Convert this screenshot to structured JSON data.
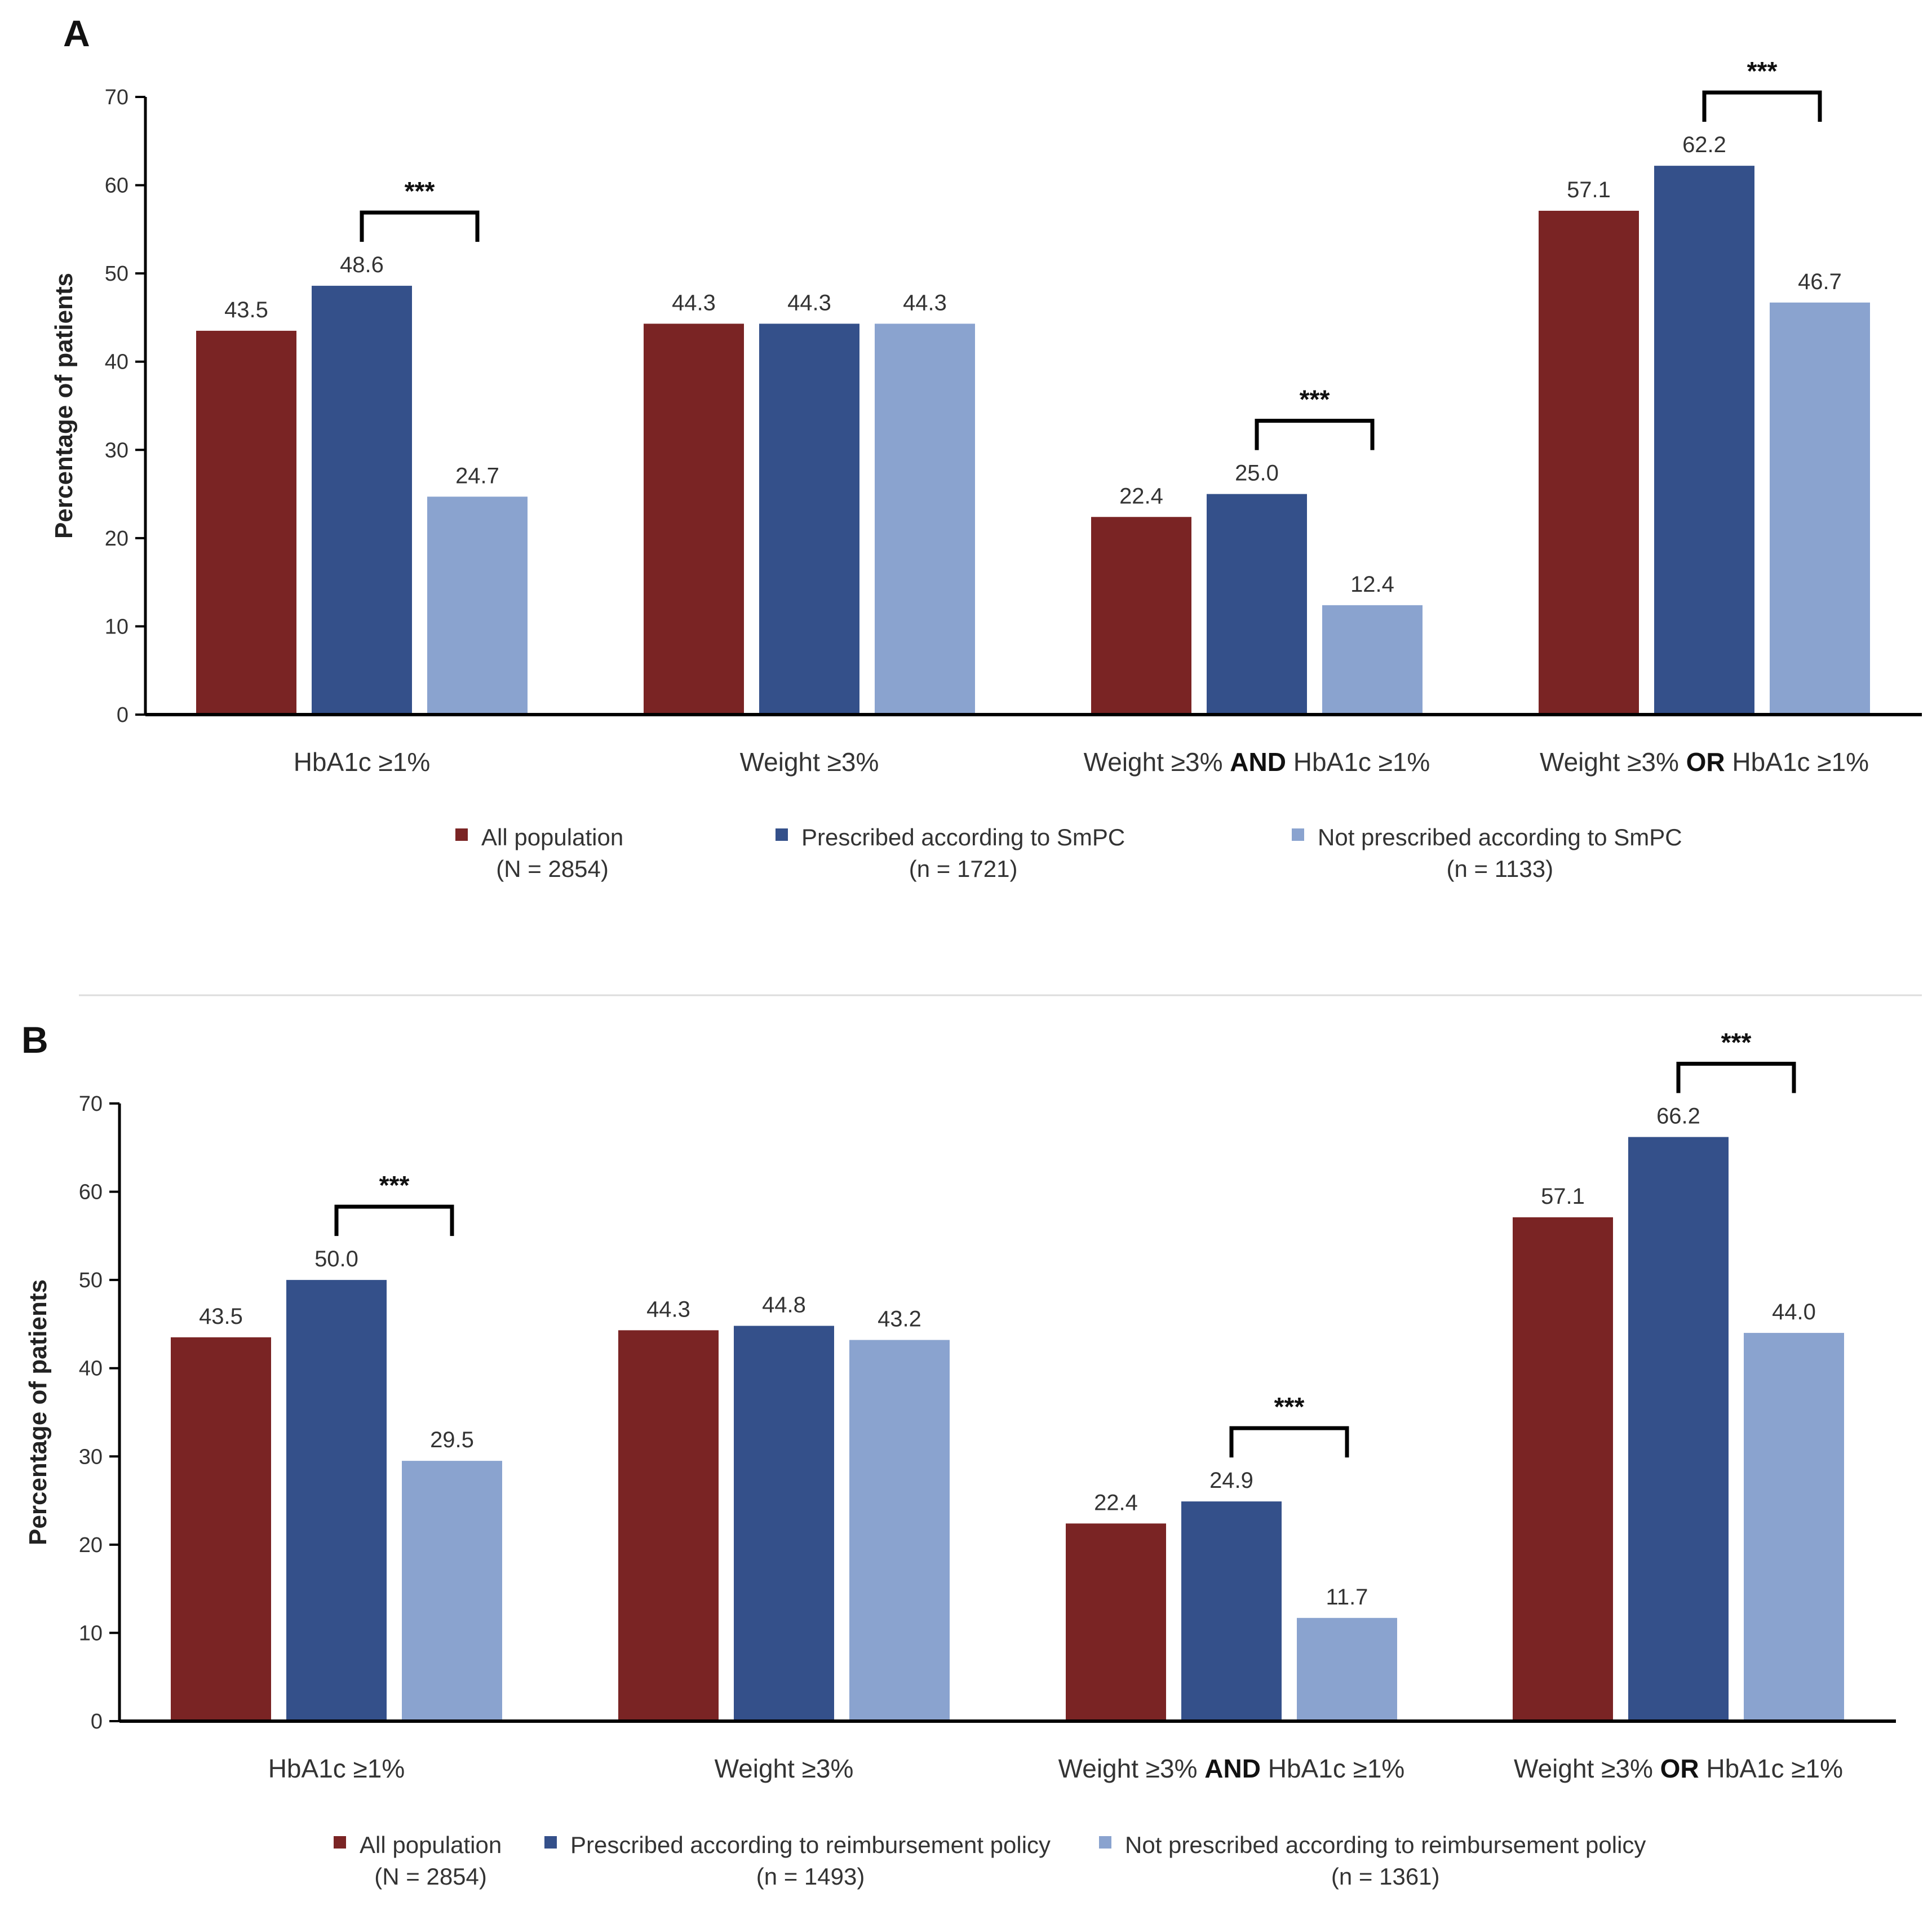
{
  "chart_data": [
    {
      "type": "bar",
      "panel": "A",
      "ylabel": "Percentage of patients",
      "ylim": [
        0,
        70
      ],
      "yticks": [
        "0",
        "10",
        "20",
        "30",
        "40",
        "50",
        "60",
        "70"
      ],
      "categories": [
        {
          "parts": [
            {
              "t": "HbA1c ≥1%",
              "b": false
            }
          ]
        },
        {
          "parts": [
            {
              "t": "Weight ≥3%",
              "b": false
            }
          ]
        },
        {
          "parts": [
            {
              "t": "Weight ≥3% ",
              "b": false
            },
            {
              "t": "AND",
              "b": true
            },
            {
              "t": " HbA1c ≥1%",
              "b": false
            }
          ]
        },
        {
          "parts": [
            {
              "t": "Weight ≥3% ",
              "b": false
            },
            {
              "t": "OR",
              "b": true
            },
            {
              "t": " HbA1c ≥1%",
              "b": false
            }
          ]
        }
      ],
      "series": [
        {
          "name": "All population",
          "n": "(N = 2854)",
          "values": [
            43.5,
            44.3,
            22.4,
            57.1
          ],
          "labels": [
            "43.5",
            "44.3",
            "22.4",
            "57.1"
          ],
          "color": "#7a2424"
        },
        {
          "name": "Prescribed according to SmPC",
          "n": "(n = 1721)",
          "values": [
            48.6,
            44.3,
            25.0,
            62.2
          ],
          "labels": [
            "48.6",
            "44.3",
            "25.0",
            "62.2"
          ],
          "color": "#34508a"
        },
        {
          "name": "Not prescribed according to SmPC",
          "n": "(n = 1133)",
          "values": [
            24.7,
            44.3,
            12.4,
            46.7
          ],
          "labels": [
            "24.7",
            "44.3",
            "12.4",
            "46.7"
          ],
          "color": "#8aa3cf"
        }
      ],
      "significance": [
        {
          "category": 0,
          "label": "***"
        },
        {
          "category": 2,
          "label": "***"
        },
        {
          "category": 3,
          "label": "***"
        }
      ]
    },
    {
      "type": "bar",
      "panel": "B",
      "ylabel": "Percentage of patients",
      "ylim": [
        0,
        70
      ],
      "yticks": [
        "0",
        "10",
        "20",
        "30",
        "40",
        "50",
        "60",
        "70"
      ],
      "categories": [
        {
          "parts": [
            {
              "t": "HbA1c ≥1%",
              "b": false
            }
          ]
        },
        {
          "parts": [
            {
              "t": "Weight ≥3%",
              "b": false
            }
          ]
        },
        {
          "parts": [
            {
              "t": "Weight ≥3% ",
              "b": false
            },
            {
              "t": "AND",
              "b": true
            },
            {
              "t": " HbA1c ≥1%",
              "b": false
            }
          ]
        },
        {
          "parts": [
            {
              "t": "Weight ≥3% ",
              "b": false
            },
            {
              "t": "OR",
              "b": true
            },
            {
              "t": " HbA1c ≥1%",
              "b": false
            }
          ]
        }
      ],
      "series": [
        {
          "name": "All population",
          "n": "(N = 2854)",
          "values": [
            43.5,
            44.3,
            22.4,
            57.1
          ],
          "labels": [
            "43.5",
            "44.3",
            "22.4",
            "57.1"
          ],
          "color": "#7a2424"
        },
        {
          "name": "Prescribed according to reimbursement policy",
          "n": "(n = 1493)",
          "values": [
            50.0,
            44.8,
            24.9,
            66.2
          ],
          "labels": [
            "50.0",
            "44.8",
            "24.9",
            "66.2"
          ],
          "color": "#34508a"
        },
        {
          "name": "Not prescribed according to reimbursement policy",
          "n": "(n = 1361)",
          "values": [
            29.5,
            43.2,
            11.7,
            44.0
          ],
          "labels": [
            "29.5",
            "43.2",
            "11.7",
            "44.0"
          ],
          "color": "#8aa3cf"
        }
      ],
      "significance": [
        {
          "category": 0,
          "label": "***"
        },
        {
          "category": 2,
          "label": "***"
        },
        {
          "category": 3,
          "label": "***"
        }
      ]
    }
  ]
}
